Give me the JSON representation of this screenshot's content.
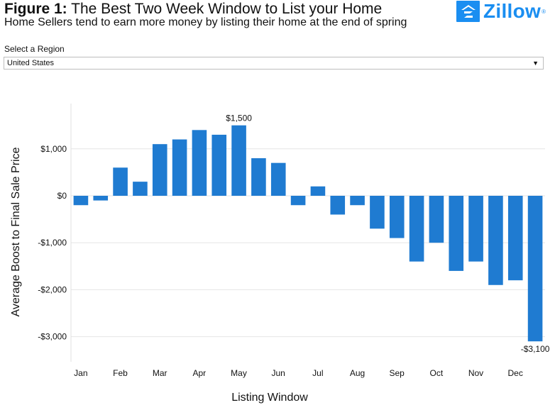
{
  "header": {
    "figure_label": "Figure 1:",
    "title": "The Best Two Week Window to List your Home",
    "subtitle": "Home Sellers tend to earn more money by listing their home at the end of spring",
    "logo_text": "Zillow",
    "logo_reg": "®"
  },
  "region": {
    "label": "Select a Region",
    "selected": "United States"
  },
  "colors": {
    "bar": "#1f7bd1",
    "brand": "#1a8ef1",
    "gridline": "#e6e6e6"
  },
  "chart_data": {
    "type": "bar",
    "xlabel": "Listing Window",
    "ylabel": "Average Boost to Final Sale Price",
    "ylim": [
      -3500,
      2000
    ],
    "grid": "horizontal",
    "y_ticks": [
      {
        "value": 1000,
        "label": "$1,000"
      },
      {
        "value": 0,
        "label": "$0"
      },
      {
        "value": -1000,
        "label": "-$1,000"
      },
      {
        "value": -2000,
        "label": "-$2,000"
      },
      {
        "value": -3000,
        "label": "-$3,000"
      }
    ],
    "x_tick_labels": [
      "Jan",
      "Feb",
      "Mar",
      "Apr",
      "May",
      "Jun",
      "Jul",
      "Aug",
      "Sep",
      "Oct",
      "Nov",
      "Dec"
    ],
    "values": [
      -200,
      -100,
      600,
      300,
      1100,
      1200,
      1400,
      1300,
      1500,
      800,
      700,
      -200,
      200,
      -400,
      -200,
      -700,
      -900,
      -1400,
      -1000,
      -1600,
      -1400,
      -1900,
      -1800,
      -3100
    ],
    "data_labels": [
      {
        "index": 8,
        "text": "$1,500"
      },
      {
        "index": 23,
        "text": "-$3,100"
      }
    ]
  }
}
